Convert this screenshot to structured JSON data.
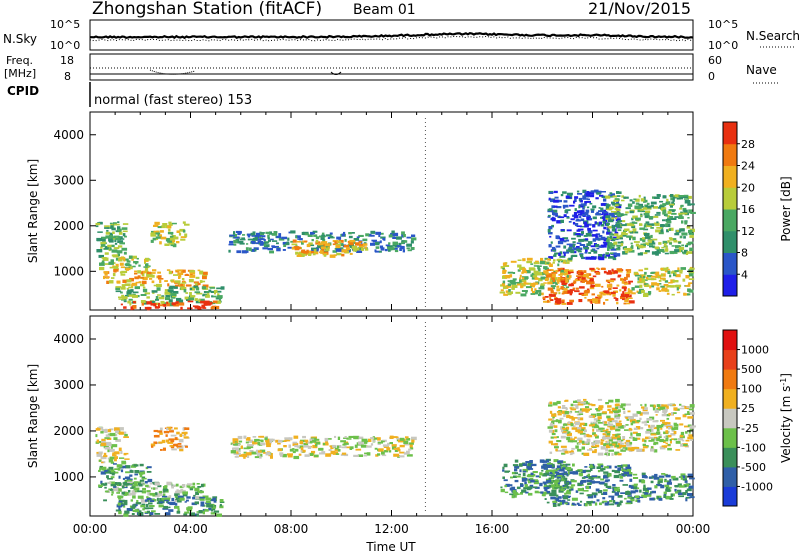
{
  "header": {
    "station_title": "Zhongshan Station (fitACF)",
    "beam": "Beam 01",
    "date": "21/Nov/2015"
  },
  "mode_label": "normal (fast stereo) 153",
  "top_panels": {
    "nsky_label": "N.Sky",
    "nsearch_label": "N.Search",
    "freq_label_1": "Freq.",
    "freq_label_2": "[MHz]",
    "nave_label": "Nave",
    "cpid_label": "CPID",
    "nsky_ticks": [
      "10^5",
      "10^0"
    ],
    "nsearch_ticks": [
      "10^5",
      "10^0"
    ],
    "freq_ticks": [
      "18",
      "8"
    ],
    "nave_ticks": [
      "60",
      "0"
    ]
  },
  "chart_data": [
    {
      "type": "heatmap",
      "name": "power-panel",
      "ylabel": "Slant Range [km]",
      "xlabel": "",
      "x_ticks": [
        "00:00",
        "04:00",
        "08:00",
        "12:00",
        "16:00",
        "20:00",
        "00:00"
      ],
      "y_ticks": [
        1000,
        2000,
        3000,
        4000
      ],
      "ylim": [
        150,
        4500
      ],
      "colorbar": {
        "label": "Power [dB]",
        "ticks": [
          "4",
          "8",
          "12",
          "16",
          "20",
          "24",
          "28"
        ],
        "colors": [
          "#1f1fe8",
          "#2a56c8",
          "#2f8f6a",
          "#4aa862",
          "#b8cc3a",
          "#f0b020",
          "#f07a10",
          "#e83010"
        ]
      },
      "regions": [
        {
          "x": [
            0.2,
            1.4
          ],
          "y": [
            1300,
            2100
          ],
          "level": 3
        },
        {
          "x": [
            0.3,
            2.3
          ],
          "y": [
            1050,
            1350
          ],
          "level": 4
        },
        {
          "x": [
            0.5,
            4.5
          ],
          "y": [
            700,
            1050
          ],
          "level": 5
        },
        {
          "x": [
            1.0,
            5.2
          ],
          "y": [
            300,
            700
          ],
          "level": 3
        },
        {
          "x": [
            1.2,
            5.0
          ],
          "y": [
            200,
            360
          ],
          "level": 7
        },
        {
          "x": [
            2.4,
            3.8
          ],
          "y": [
            1600,
            2100
          ],
          "level": 4
        },
        {
          "x": [
            5.5,
            12.8
          ],
          "y": [
            1450,
            1900
          ],
          "level": 2
        },
        {
          "x": [
            8.0,
            11.0
          ],
          "y": [
            1350,
            1700
          ],
          "level": 5
        },
        {
          "x": [
            16.3,
            19.0
          ],
          "y": [
            500,
            1300
          ],
          "level": 4
        },
        {
          "x": [
            18.0,
            21.5
          ],
          "y": [
            300,
            1100
          ],
          "level": 6
        },
        {
          "x": [
            18.2,
            21.0
          ],
          "y": [
            1300,
            2800
          ],
          "level": 1
        },
        {
          "x": [
            20.5,
            23.9
          ],
          "y": [
            1400,
            2700
          ],
          "level": 3
        },
        {
          "x": [
            21.5,
            23.9
          ],
          "y": [
            500,
            1100
          ],
          "level": 4
        }
      ]
    },
    {
      "type": "heatmap",
      "name": "velocity-panel",
      "ylabel": "Slant Range [km]",
      "xlabel": "Time UT",
      "x_ticks": [
        "00:00",
        "04:00",
        "08:00",
        "12:00",
        "16:00",
        "20:00",
        "00:00"
      ],
      "y_ticks": [
        1000,
        2000,
        3000,
        4000
      ],
      "ylim": [
        150,
        4500
      ],
      "colorbar": {
        "label": "Velocity [m s",
        "label_sup": "-1",
        "label_end": "]",
        "ticks": [
          "1000",
          "500",
          "100",
          "25",
          "-25",
          "-100",
          "-500",
          "-1000"
        ],
        "colors": [
          "#1a3cd8",
          "#2f5fa8",
          "#3a8f5a",
          "#6cc04a",
          "#c8c8c0",
          "#f0b020",
          "#f07a10",
          "#e8401a",
          "#e01010"
        ]
      },
      "regions": [
        {
          "x": [
            0.2,
            1.4
          ],
          "y": [
            1300,
            2100
          ],
          "level": 4
        },
        {
          "x": [
            0.3,
            2.3
          ],
          "y": [
            800,
            1300
          ],
          "level": 2
        },
        {
          "x": [
            0.5,
            4.5
          ],
          "y": [
            500,
            900
          ],
          "level": 3
        },
        {
          "x": [
            1.0,
            5.2
          ],
          "y": [
            200,
            600
          ],
          "level": 2
        },
        {
          "x": [
            2.4,
            3.8
          ],
          "y": [
            1600,
            2100
          ],
          "level": 5
        },
        {
          "x": [
            5.5,
            12.8
          ],
          "y": [
            1450,
            1900
          ],
          "level": 4
        },
        {
          "x": [
            16.3,
            19.0
          ],
          "y": [
            600,
            1400
          ],
          "level": 2
        },
        {
          "x": [
            18.0,
            21.5
          ],
          "y": [
            400,
            1300
          ],
          "level": 2
        },
        {
          "x": [
            18.2,
            21.0
          ],
          "y": [
            1500,
            2700
          ],
          "level": 4
        },
        {
          "x": [
            20.5,
            23.9
          ],
          "y": [
            1600,
            2600
          ],
          "level": 4
        },
        {
          "x": [
            21.5,
            23.9
          ],
          "y": [
            500,
            1100
          ],
          "level": 2
        }
      ]
    }
  ]
}
